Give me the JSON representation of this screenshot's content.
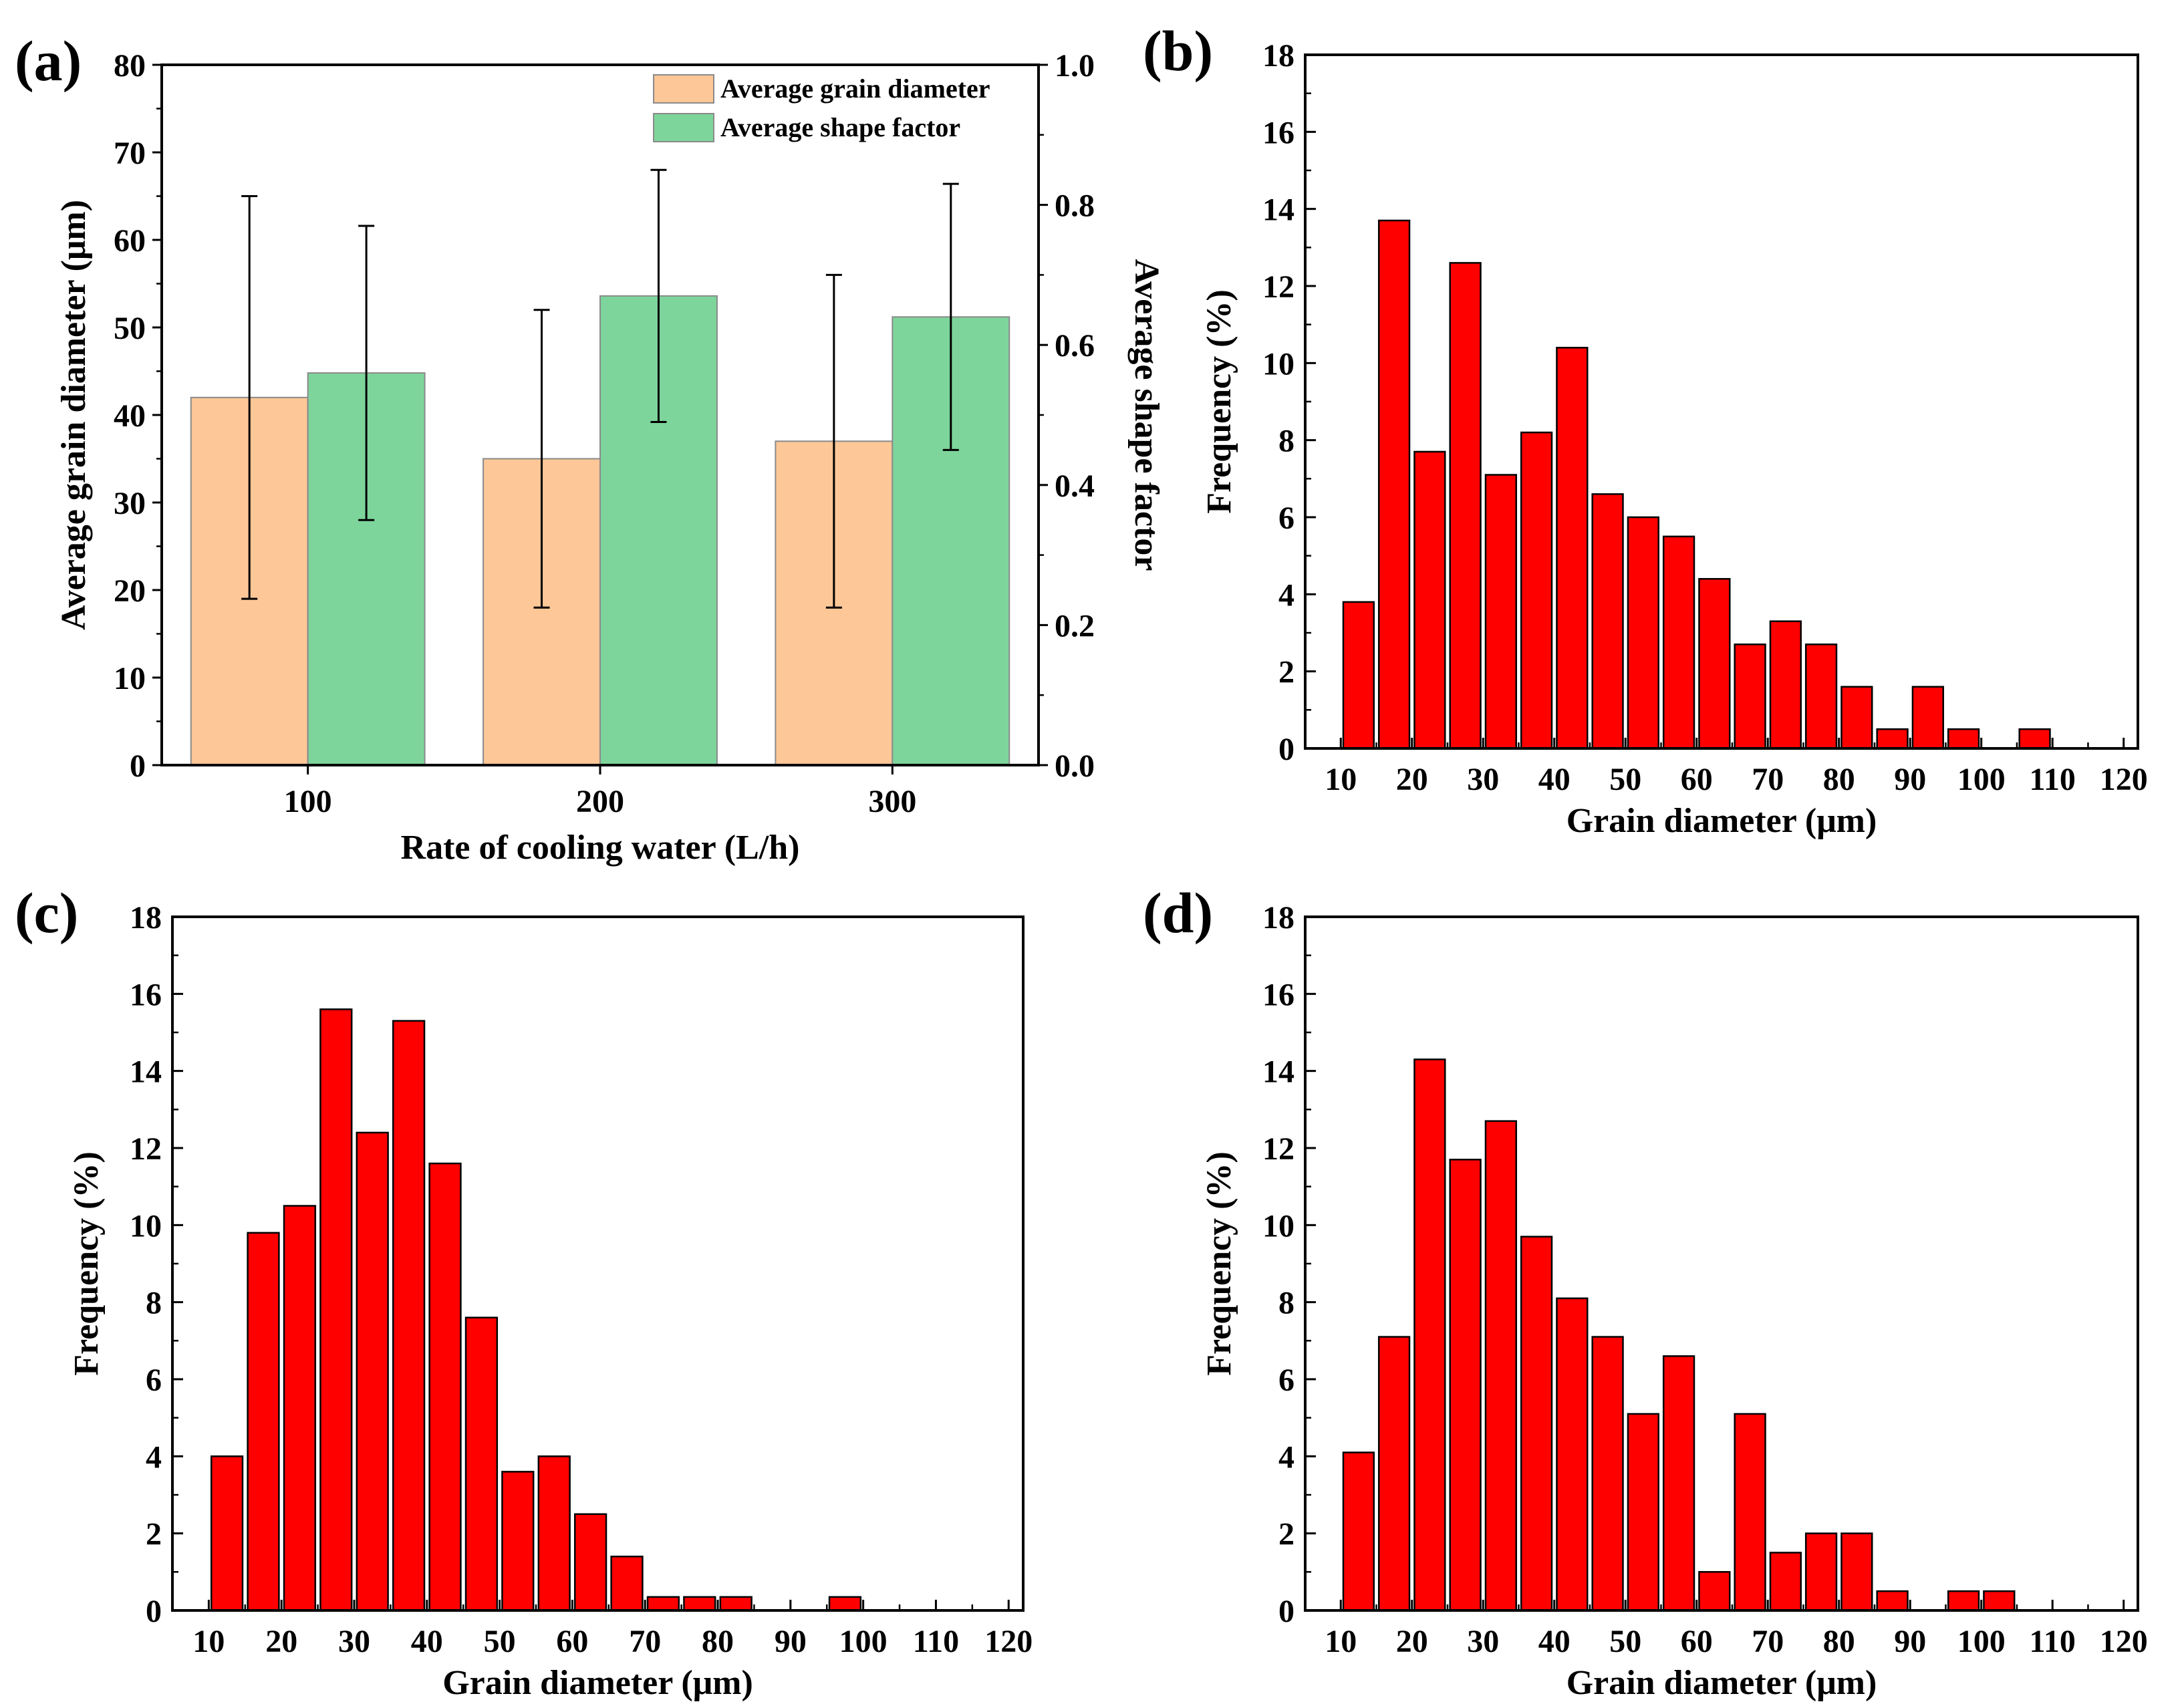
{
  "figure": {
    "bar_color": "#ff0000",
    "bar_stroke": "#000000",
    "grain_color": "#fdc797",
    "shape_color": "#7dd59b"
  },
  "chart_data": [
    {
      "panel": "(a)",
      "type": "bar",
      "xlabel": "Rate of cooling water (L/h)",
      "ylabel": "Average grain diameter (μm)",
      "y2label": "Average shape factor",
      "ylim": [
        0,
        80
      ],
      "yticks": [
        0,
        10,
        20,
        30,
        40,
        50,
        60,
        70,
        80
      ],
      "y2lim": [
        0,
        1.0
      ],
      "y2ticks": [
        "0.0",
        "0.2",
        "0.4",
        "0.6",
        "0.8",
        "1.0"
      ],
      "categories": [
        "100",
        "200",
        "300"
      ],
      "legend_position": "top-right",
      "series": [
        {
          "name": "Average grain diameter",
          "axis": "left",
          "values": [
            42,
            35,
            37
          ],
          "err_low": [
            19,
            18,
            18
          ],
          "err_high": [
            65,
            52,
            56
          ]
        },
        {
          "name": "Average shape factor",
          "axis": "right",
          "values": [
            0.56,
            0.67,
            0.64
          ],
          "err_low": [
            0.35,
            0.49,
            0.45
          ],
          "err_high": [
            0.77,
            0.85,
            0.83
          ]
        }
      ]
    },
    {
      "panel": "(b)",
      "type": "bar",
      "xlabel": "Grain diameter (μm)",
      "ylabel": "Frequency (%)",
      "xlim": [
        5,
        122
      ],
      "ylim": [
        0,
        18
      ],
      "xticks": [
        10,
        20,
        30,
        40,
        50,
        60,
        70,
        80,
        90,
        100,
        110,
        120
      ],
      "yticks": [
        0,
        2,
        4,
        6,
        8,
        10,
        12,
        14,
        16,
        18
      ],
      "bin_width": 5,
      "bin_centers": [
        12.5,
        17.5,
        22.5,
        27.5,
        32.5,
        37.5,
        42.5,
        47.5,
        52.5,
        57.5,
        62.5,
        67.5,
        72.5,
        77.5,
        82.5,
        87.5,
        92.5,
        97.5,
        102.5,
        107.5,
        112.5,
        117.5
      ],
      "values": [
        3.8,
        13.7,
        7.7,
        12.6,
        7.1,
        8.2,
        10.4,
        6.6,
        6.0,
        5.5,
        4.4,
        2.7,
        3.3,
        2.7,
        1.6,
        0.5,
        1.6,
        0.5,
        0,
        0.5,
        0,
        0
      ]
    },
    {
      "panel": "(c)",
      "type": "bar",
      "xlabel": "Grain diameter (μm)",
      "ylabel": "Frequency (%)",
      "xlim": [
        5,
        122
      ],
      "ylim": [
        0,
        18
      ],
      "xticks": [
        10,
        20,
        30,
        40,
        50,
        60,
        70,
        80,
        90,
        100,
        110,
        120
      ],
      "yticks": [
        0,
        2,
        4,
        6,
        8,
        10,
        12,
        14,
        16,
        18
      ],
      "bin_width": 5,
      "bin_centers": [
        12.5,
        17.5,
        22.5,
        27.5,
        32.5,
        37.5,
        42.5,
        47.5,
        52.5,
        57.5,
        62.5,
        67.5,
        72.5,
        77.5,
        82.5,
        87.5,
        92.5,
        97.5,
        102.5,
        107.5,
        112.5,
        117.5
      ],
      "values": [
        4.0,
        9.8,
        10.5,
        15.6,
        12.4,
        15.3,
        11.6,
        7.6,
        3.6,
        4.0,
        2.5,
        1.4,
        0.35,
        0.35,
        0.35,
        0,
        0,
        0.35,
        0,
        0,
        0,
        0
      ]
    },
    {
      "panel": "(d)",
      "type": "bar",
      "xlabel": "Grain diameter (μm)",
      "ylabel": "Frequency (%)",
      "xlim": [
        5,
        122
      ],
      "ylim": [
        0,
        18
      ],
      "xticks": [
        10,
        20,
        30,
        40,
        50,
        60,
        70,
        80,
        90,
        100,
        110,
        120
      ],
      "yticks": [
        0,
        2,
        4,
        6,
        8,
        10,
        12,
        14,
        16,
        18
      ],
      "bin_width": 5,
      "bin_centers": [
        12.5,
        17.5,
        22.5,
        27.5,
        32.5,
        37.5,
        42.5,
        47.5,
        52.5,
        57.5,
        62.5,
        67.5,
        72.5,
        77.5,
        82.5,
        87.5,
        92.5,
        97.5,
        102.5,
        107.5,
        112.5,
        117.5
      ],
      "values": [
        4.1,
        7.1,
        14.3,
        11.7,
        12.7,
        9.7,
        8.1,
        7.1,
        5.1,
        6.6,
        1.0,
        5.1,
        1.5,
        2.0,
        2.0,
        0.5,
        0,
        0.5,
        0.5,
        0,
        0,
        0
      ]
    }
  ]
}
